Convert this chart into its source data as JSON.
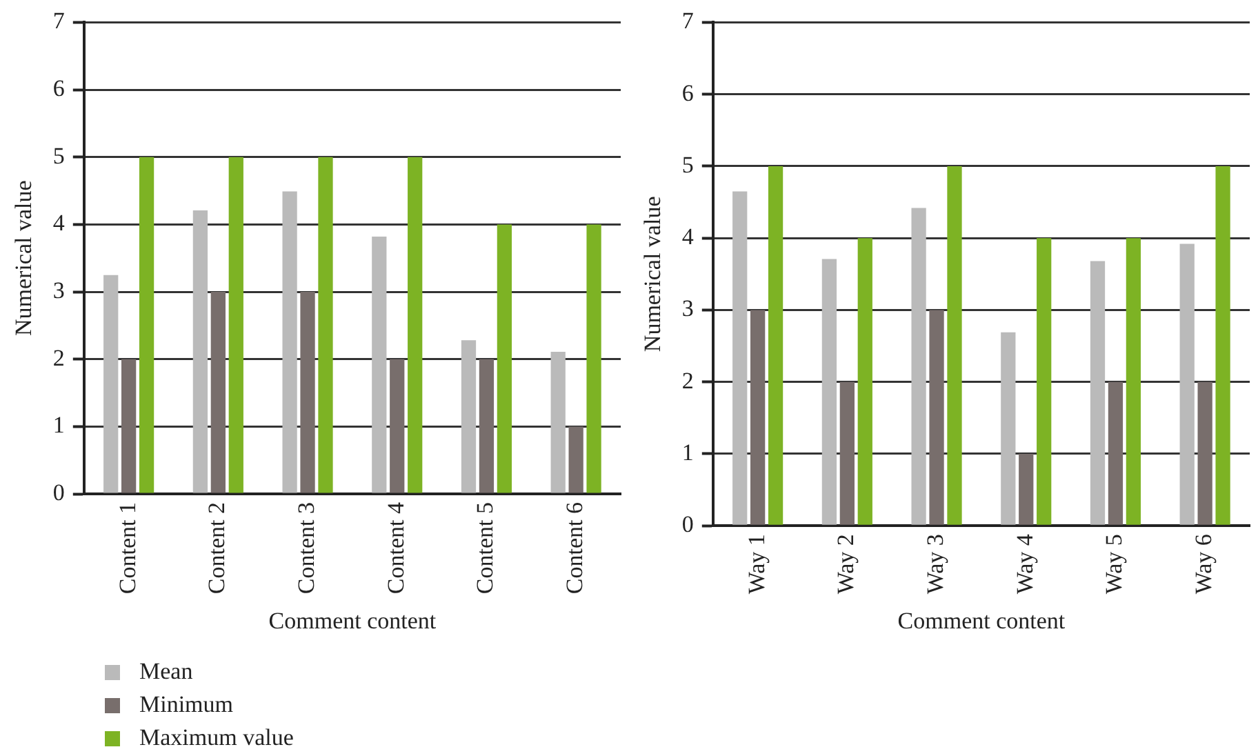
{
  "chart_data": [
    {
      "type": "bar",
      "xlabel": "Comment content",
      "ylabel": "Numerical value",
      "categories": [
        "Content 1",
        "Content 2",
        "Content 3",
        "Content 4",
        "Content 5",
        "Content 6"
      ],
      "series": [
        {
          "name": "Mean",
          "color": "#bababa",
          "values": [
            3.25,
            4.21,
            4.49,
            3.82,
            2.28,
            2.11
          ]
        },
        {
          "name": "Minimum",
          "color": "#786e6c",
          "values": [
            2,
            3,
            3,
            2,
            2,
            1
          ]
        },
        {
          "name": "Maximum value",
          "color": "#7db324",
          "values": [
            5,
            5,
            5,
            5,
            4,
            4
          ]
        }
      ],
      "ylim": [
        0,
        7
      ],
      "yticks": [
        0,
        1,
        2,
        3,
        4,
        5,
        6,
        7
      ],
      "grid": "y",
      "legend": "bottom left"
    },
    {
      "type": "bar",
      "xlabel": "Comment content",
      "ylabel": "Numerical value",
      "categories": [
        "Way 1",
        "Way 2",
        "Way 3",
        "Way 4",
        "Way 5",
        "Way 6"
      ],
      "series": [
        {
          "color": "#bababa",
          "values": [
            4.65,
            3.71,
            4.42,
            2.69,
            3.68,
            3.92
          ]
        },
        {
          "color": "#786e6c",
          "values": [
            3,
            2,
            3,
            1,
            2,
            2
          ]
        },
        {
          "color": "#7db324",
          "values": [
            5,
            4,
            5,
            4,
            4,
            5
          ]
        }
      ],
      "ylim": [
        0,
        7
      ],
      "yticks": [
        0,
        1,
        2,
        3,
        4,
        5,
        6,
        7
      ],
      "grid": "y"
    }
  ]
}
